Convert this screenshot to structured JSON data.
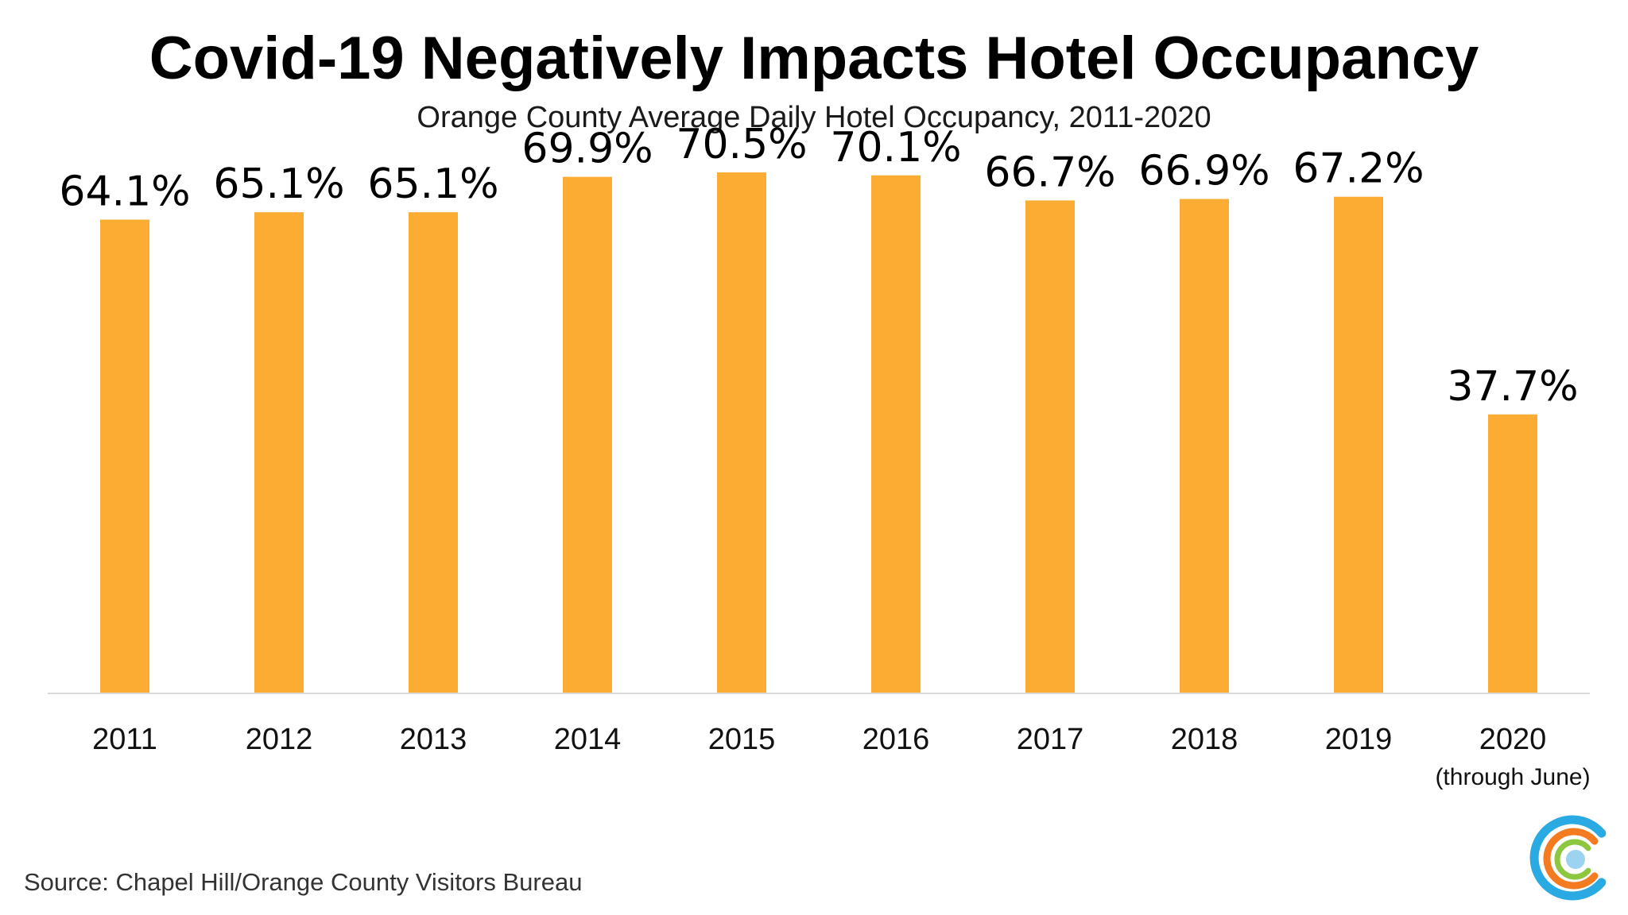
{
  "chart_data": {
    "type": "bar",
    "title": "Covid-19 Negatively Impacts Hotel Occupancy",
    "subtitle": "Orange County Average Daily Hotel Occupancy, 2011-2020",
    "categories": [
      "2011",
      "2012",
      "2013",
      "2014",
      "2015",
      "2016",
      "2017",
      "2018",
      "2019",
      "2020"
    ],
    "category_notes": [
      "",
      "",
      "",
      "",
      "",
      "",
      "",
      "",
      "",
      "(through June)"
    ],
    "values": [
      64.1,
      65.1,
      65.1,
      69.9,
      70.5,
      70.1,
      66.7,
      66.9,
      67.2,
      37.7
    ],
    "value_labels": [
      "64.1%",
      "65.1%",
      "65.1%",
      "69.9%",
      "70.5%",
      "70.1%",
      "66.7%",
      "66.9%",
      "67.2%",
      "37.7%"
    ],
    "xlabel": "",
    "ylabel": "",
    "ylim": [
      0,
      80
    ],
    "grid": false,
    "legend": "none",
    "bar_color": "#FBAC33",
    "axis_color": "#d9d9d9"
  },
  "source": "Source: Chapel Hill/Orange County Visitors Bureau",
  "logo": {
    "icon": "concentric-c-logo-icon",
    "colors": [
      "#2AAAE2",
      "#F47B20",
      "#8DC63F",
      "#9BD3F1"
    ]
  }
}
